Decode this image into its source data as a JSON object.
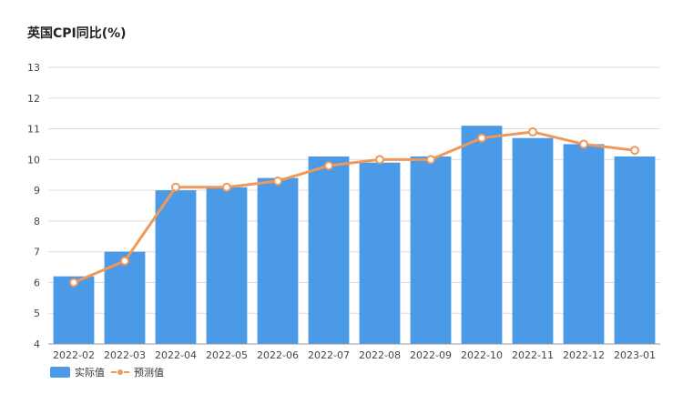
{
  "chart_data": {
    "type": "bar",
    "title": "英国CPI同比(%)",
    "xlabel": "",
    "ylabel": "",
    "categories": [
      "2022-02",
      "2022-03",
      "2022-04",
      "2022-05",
      "2022-06",
      "2022-07",
      "2022-08",
      "2022-09",
      "2022-10",
      "2022-11",
      "2022-12",
      "2023-01"
    ],
    "series": [
      {
        "name": "实际值",
        "kind": "bar",
        "color": "#4a9ae8",
        "values": [
          6.2,
          7.0,
          9.0,
          9.1,
          9.4,
          10.1,
          9.9,
          10.1,
          11.1,
          10.7,
          10.5,
          10.1
        ]
      },
      {
        "name": "预测值",
        "kind": "line",
        "color": "#f0985a",
        "values": [
          6.0,
          6.7,
          9.1,
          9.1,
          9.3,
          9.8,
          10.0,
          10.0,
          10.7,
          10.9,
          10.5,
          10.3
        ]
      }
    ],
    "ylim": [
      4,
      13
    ],
    "yticks": [
      4,
      5,
      6,
      7,
      8,
      9,
      10,
      11,
      12,
      13
    ],
    "grid": true,
    "legend_position": "bottom-left"
  }
}
